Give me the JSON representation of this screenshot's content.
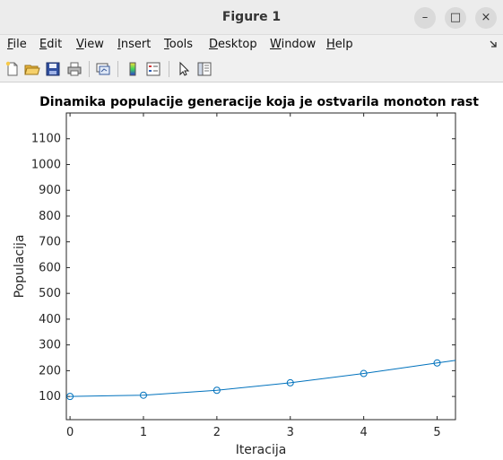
{
  "window": {
    "title": "Figure 1",
    "minimize": "–",
    "maximize": "□",
    "close": "×"
  },
  "menu": [
    {
      "u": "F",
      "rest": "ile"
    },
    {
      "u": "E",
      "rest": "dit"
    },
    {
      "u": "V",
      "rest": "iew"
    },
    {
      "u": "I",
      "rest": "nsert"
    },
    {
      "u": "T",
      "rest": "ools"
    },
    {
      "u": "D",
      "rest": "esktop"
    },
    {
      "u": "W",
      "rest": "indow"
    },
    {
      "u": "H",
      "rest": "elp"
    }
  ],
  "toolbar": {
    "icons": [
      "new-figure-icon",
      "open-file-icon",
      "save-icon",
      "print-icon",
      "link-plot-icon",
      "colorbar-icon",
      "legend-icon",
      "pointer-icon",
      "property-editor-icon"
    ]
  },
  "chart_data": {
    "type": "line",
    "title": "Dinamika populacije generacije koja je ostvarila monoton rast",
    "xlabel": "Iteracija",
    "ylabel": "Populacija",
    "xlim": [
      -0.05,
      5.25
    ],
    "ylim": [
      10,
      1200
    ],
    "xticks": [
      0,
      1,
      2,
      3,
      4,
      5
    ],
    "yticks": [
      100,
      200,
      300,
      400,
      500,
      600,
      700,
      800,
      900,
      1000,
      1100
    ],
    "series": [
      {
        "marker": "circle",
        "color": "#0072bd",
        "x": [
          0,
          1,
          2,
          3,
          4,
          5
        ],
        "y": [
          100,
          105,
          124,
          153,
          189,
          230
        ]
      }
    ],
    "line_continuation": {
      "x": 5.25,
      "y": 240
    },
    "grid": false
  }
}
